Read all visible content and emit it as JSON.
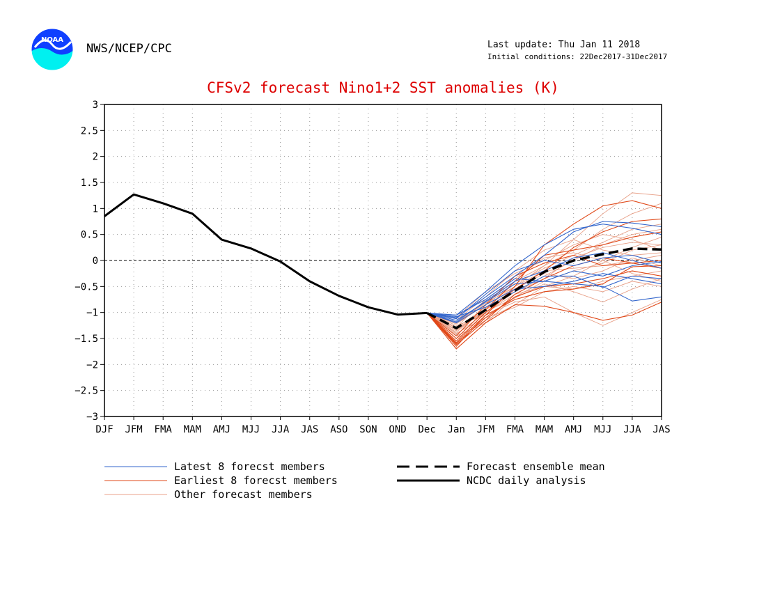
{
  "header": {
    "logo_text": "NOAA",
    "agency": "NWS/NCEP/CPC",
    "last_update": "Last update: Thu Jan 11 2018",
    "initial_conditions": "Initial conditions: 22Dec2017-31Dec2017",
    "title": "CFSv2 forecast Nino1+2 SST anomalies (K)"
  },
  "colors": {
    "title": "#dd0000",
    "latest": "#3366cc",
    "earliest": "#e04818",
    "other": "#e8a088",
    "analysis": "#000000",
    "ensemble_mean": "#000000",
    "logo_top": "#1040ff",
    "logo_bottom": "#00f0f0"
  },
  "legend": {
    "latest": "Latest 8 forecst members",
    "earliest": "Earliest 8 forecst members",
    "other": "Other forecast members",
    "mean": "Forecast ensemble mean",
    "analysis": "NCDC daily analysis"
  },
  "chart_data": {
    "type": "line",
    "title": "CFSv2 forecast Nino1+2 SST anomalies (K)",
    "x": [
      "DJF",
      "JFM",
      "FMA",
      "MAM",
      "AMJ",
      "MJJ",
      "JJA",
      "JAS",
      "ASO",
      "SON",
      "OND",
      "Dec",
      "Jan",
      "JFM",
      "FMA",
      "MAM",
      "AMJ",
      "MJJ",
      "JJA",
      "JAS"
    ],
    "ylim": [
      -3,
      3
    ],
    "yticks": [
      "3",
      "2.5",
      "2",
      "1.5",
      "1",
      "0.5",
      "0",
      "−0.5",
      "−1",
      "−1.5",
      "−2",
      "−2.5",
      "−3"
    ],
    "ytick_values": [
      3,
      2.5,
      2,
      1.5,
      1,
      0.5,
      0,
      -0.5,
      -1,
      -1.5,
      -2,
      -2.5,
      -3
    ],
    "grid": true,
    "zero_line": true,
    "analysis": {
      "start_index": 0,
      "values": [
        0.85,
        1.27,
        1.1,
        0.9,
        0.4,
        0.23,
        -0.02,
        -0.4,
        -0.68,
        -0.9,
        -1.04,
        -1.01
      ]
    },
    "ensemble_mean": {
      "start_index": 11,
      "values": [
        -1.01,
        -1.3,
        -0.95,
        -0.58,
        -0.22,
        0.0,
        0.12,
        0.23,
        0.21
      ]
    },
    "members": {
      "start_index": 11,
      "latest": [
        [
          -1.01,
          -1.1,
          -0.7,
          -0.3,
          0.1,
          0.55,
          0.75,
          0.72,
          0.65
        ],
        [
          -1.01,
          -1.05,
          -0.6,
          -0.1,
          0.3,
          0.6,
          0.7,
          0.62,
          0.5
        ],
        [
          -1.01,
          -1.15,
          -0.8,
          -0.45,
          -0.4,
          -0.45,
          -0.5,
          -0.78,
          -0.7
        ],
        [
          -1.01,
          -1.05,
          -0.75,
          -0.35,
          -0.4,
          -0.2,
          -0.3,
          -0.1,
          -0.02
        ],
        [
          -1.01,
          -1.2,
          -0.85,
          -0.55,
          -0.5,
          -0.4,
          -0.25,
          -0.35,
          -0.45
        ],
        [
          -1.01,
          -1.12,
          -0.65,
          -0.2,
          0.0,
          -0.1,
          0.05,
          0.1,
          -0.05
        ],
        [
          -1.01,
          -1.08,
          -0.9,
          -0.6,
          -0.3,
          -0.3,
          -0.52,
          -0.3,
          -0.35
        ],
        [
          -1.01,
          -1.18,
          -0.78,
          -0.4,
          -0.2,
          0.05,
          0.15,
          0.0,
          -0.15
        ]
      ],
      "earliest": [
        [
          -1.01,
          -1.65,
          -1.05,
          -0.5,
          0.3,
          0.7,
          1.05,
          1.15,
          1.0
        ],
        [
          -1.01,
          -1.7,
          -1.2,
          -0.85,
          -0.88,
          -1.0,
          -1.15,
          -1.05,
          -0.8
        ],
        [
          -1.01,
          -1.55,
          -1.0,
          -0.55,
          -0.2,
          0.25,
          0.55,
          0.75,
          0.8
        ],
        [
          -1.01,
          -1.6,
          -1.1,
          -0.7,
          -0.5,
          -0.45,
          -0.35,
          -0.2,
          -0.3
        ],
        [
          -1.01,
          -1.5,
          -0.95,
          -0.4,
          0.1,
          0.2,
          0.3,
          0.45,
          0.55
        ],
        [
          -1.01,
          -1.62,
          -1.15,
          -0.65,
          -0.35,
          -0.1,
          0.05,
          -0.05,
          -0.15
        ],
        [
          -1.01,
          -1.45,
          -0.85,
          -0.3,
          -0.05,
          0.1,
          -0.1,
          -0.05,
          0.0
        ],
        [
          -1.01,
          -1.58,
          -1.05,
          -0.75,
          -0.6,
          -0.55,
          -0.45,
          -0.12,
          -0.1
        ]
      ],
      "other": [
        [
          -1.01,
          -1.3,
          -0.9,
          -0.5,
          -0.1,
          0.4,
          0.9,
          1.3,
          1.25
        ],
        [
          -1.01,
          -1.25,
          -1.05,
          -0.8,
          -0.7,
          -1.0,
          -1.25,
          -1.0,
          -0.75
        ],
        [
          -1.01,
          -1.35,
          -0.95,
          -0.6,
          -0.3,
          0.0,
          0.3,
          0.5,
          0.6
        ],
        [
          -1.01,
          -1.4,
          -1.1,
          -0.9,
          -0.6,
          -0.5,
          -0.6,
          -0.4,
          -0.5
        ],
        [
          -1.01,
          -1.2,
          -0.8,
          -0.4,
          -0.1,
          0.2,
          0.6,
          0.9,
          1.1
        ],
        [
          -1.01,
          -1.15,
          -0.7,
          -0.2,
          0.2,
          0.4,
          0.2,
          0.1,
          0.15
        ],
        [
          -1.01,
          -1.45,
          -1.2,
          -0.7,
          -0.4,
          -0.2,
          -0.05,
          0.2,
          0.3
        ],
        [
          -1.01,
          -1.3,
          -1.0,
          -0.65,
          -0.5,
          -0.55,
          -0.4,
          -0.3,
          -0.2
        ],
        [
          -1.01,
          -1.1,
          -0.6,
          -0.25,
          0.0,
          0.3,
          0.5,
          0.4,
          0.2
        ],
        [
          -1.01,
          -1.5,
          -1.15,
          -0.85,
          -0.5,
          -0.3,
          0.0,
          0.25,
          0.45
        ],
        [
          -1.01,
          -1.22,
          -0.85,
          -0.45,
          -0.15,
          0.1,
          0.35,
          0.6,
          0.7
        ],
        [
          -1.01,
          -1.38,
          -0.92,
          -0.55,
          -0.25,
          -0.35,
          -0.2,
          0.05,
          -0.1
        ],
        [
          -1.01,
          -1.28,
          -0.75,
          -0.35,
          0.05,
          0.15,
          0.0,
          -0.25,
          -0.4
        ],
        [
          -1.01,
          -1.42,
          -1.0,
          -0.6,
          -0.35,
          0.05,
          0.25,
          0.35,
          0.3
        ],
        [
          -1.01,
          -1.18,
          -0.82,
          -0.5,
          -0.2,
          -0.15,
          -0.1,
          0.0,
          0.1
        ],
        [
          -1.01,
          -1.33,
          -0.98,
          -0.72,
          -0.45,
          -0.6,
          -0.8,
          -0.55,
          -0.35
        ]
      ]
    }
  }
}
